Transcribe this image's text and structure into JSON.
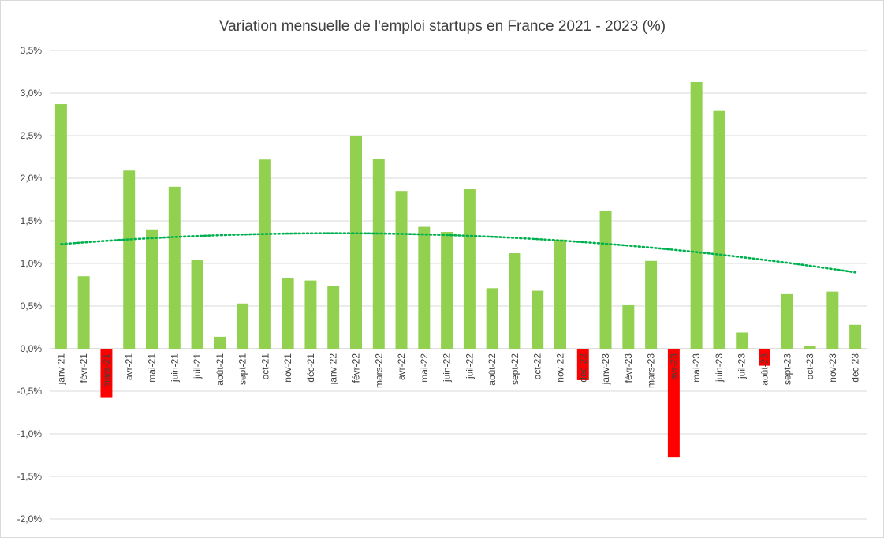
{
  "chart_data": {
    "type": "bar",
    "title": "Variation mensuelle de l'emploi startups en France 2021 - 2023 (%)",
    "xlabel": "",
    "ylabel": "",
    "ylim": [
      -2.0,
      3.5
    ],
    "y_ticks": [
      3.5,
      3.0,
      2.5,
      2.0,
      1.5,
      1.0,
      0.5,
      0.0,
      -0.5,
      -1.0,
      -1.5,
      -2.0
    ],
    "y_tick_labels": [
      "3,5%",
      "3,0%",
      "2,5%",
      "2,0%",
      "1,5%",
      "1,0%",
      "0,5%",
      "0,0%",
      "-0,5%",
      "-1,0%",
      "-1,5%",
      "-2,0%"
    ],
    "grid": true,
    "categories": [
      "janv-21",
      "févr-21",
      "mars-21",
      "avr-21",
      "mai-21",
      "juin-21",
      "juil-21",
      "août-21",
      "sept-21",
      "oct-21",
      "nov-21",
      "déc-21",
      "janv-22",
      "févr-22",
      "mars-22",
      "avr-22",
      "mai-22",
      "juin-22",
      "juil-22",
      "août-22",
      "sept-22",
      "oct-22",
      "nov-22",
      "déc-22",
      "janv-23",
      "févr-23",
      "mars-23",
      "avr-23",
      "mai-23",
      "juin-23",
      "juil-23",
      "août-23",
      "sept-23",
      "oct-23",
      "nov-23",
      "déc-23"
    ],
    "values": [
      2.87,
      0.85,
      -0.57,
      2.09,
      1.4,
      1.9,
      1.04,
      0.14,
      0.53,
      2.22,
      0.83,
      0.8,
      0.74,
      2.5,
      2.23,
      1.85,
      1.43,
      1.37,
      1.87,
      0.71,
      1.12,
      0.68,
      1.28,
      -0.37,
      1.62,
      0.51,
      1.03,
      -1.27,
      3.13,
      2.79,
      0.19,
      -0.2,
      0.64,
      0.03,
      0.67,
      0.28
    ],
    "trendline": {
      "type": "polynomial",
      "order": 2,
      "coefficients": [
        1.2265,
        0.02123,
        -0.000877
      ]
    },
    "colors": {
      "positive": "#92d050",
      "negative": "#ff0000",
      "trend": "#00b050"
    }
  }
}
